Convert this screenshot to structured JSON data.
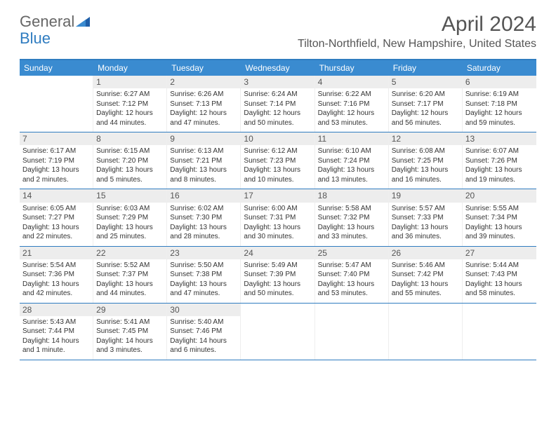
{
  "brand": {
    "part1": "General",
    "part2": "Blue"
  },
  "title": "April 2024",
  "location": "Tilton-Northfield, New Hampshire, United States",
  "colors": {
    "header_bar": "#3a8bd0",
    "border": "#2f7cc0",
    "daynum_bg": "#ededed",
    "text": "#333333",
    "title_text": "#555555"
  },
  "weekdays": [
    "Sunday",
    "Monday",
    "Tuesday",
    "Wednesday",
    "Thursday",
    "Friday",
    "Saturday"
  ],
  "weeks": [
    [
      null,
      {
        "n": "1",
        "sr": "6:27 AM",
        "ss": "7:12 PM",
        "dl": "12 hours and 44 minutes."
      },
      {
        "n": "2",
        "sr": "6:26 AM",
        "ss": "7:13 PM",
        "dl": "12 hours and 47 minutes."
      },
      {
        "n": "3",
        "sr": "6:24 AM",
        "ss": "7:14 PM",
        "dl": "12 hours and 50 minutes."
      },
      {
        "n": "4",
        "sr": "6:22 AM",
        "ss": "7:16 PM",
        "dl": "12 hours and 53 minutes."
      },
      {
        "n": "5",
        "sr": "6:20 AM",
        "ss": "7:17 PM",
        "dl": "12 hours and 56 minutes."
      },
      {
        "n": "6",
        "sr": "6:19 AM",
        "ss": "7:18 PM",
        "dl": "12 hours and 59 minutes."
      }
    ],
    [
      {
        "n": "7",
        "sr": "6:17 AM",
        "ss": "7:19 PM",
        "dl": "13 hours and 2 minutes."
      },
      {
        "n": "8",
        "sr": "6:15 AM",
        "ss": "7:20 PM",
        "dl": "13 hours and 5 minutes."
      },
      {
        "n": "9",
        "sr": "6:13 AM",
        "ss": "7:21 PM",
        "dl": "13 hours and 8 minutes."
      },
      {
        "n": "10",
        "sr": "6:12 AM",
        "ss": "7:23 PM",
        "dl": "13 hours and 10 minutes."
      },
      {
        "n": "11",
        "sr": "6:10 AM",
        "ss": "7:24 PM",
        "dl": "13 hours and 13 minutes."
      },
      {
        "n": "12",
        "sr": "6:08 AM",
        "ss": "7:25 PM",
        "dl": "13 hours and 16 minutes."
      },
      {
        "n": "13",
        "sr": "6:07 AM",
        "ss": "7:26 PM",
        "dl": "13 hours and 19 minutes."
      }
    ],
    [
      {
        "n": "14",
        "sr": "6:05 AM",
        "ss": "7:27 PM",
        "dl": "13 hours and 22 minutes."
      },
      {
        "n": "15",
        "sr": "6:03 AM",
        "ss": "7:29 PM",
        "dl": "13 hours and 25 minutes."
      },
      {
        "n": "16",
        "sr": "6:02 AM",
        "ss": "7:30 PM",
        "dl": "13 hours and 28 minutes."
      },
      {
        "n": "17",
        "sr": "6:00 AM",
        "ss": "7:31 PM",
        "dl": "13 hours and 30 minutes."
      },
      {
        "n": "18",
        "sr": "5:58 AM",
        "ss": "7:32 PM",
        "dl": "13 hours and 33 minutes."
      },
      {
        "n": "19",
        "sr": "5:57 AM",
        "ss": "7:33 PM",
        "dl": "13 hours and 36 minutes."
      },
      {
        "n": "20",
        "sr": "5:55 AM",
        "ss": "7:34 PM",
        "dl": "13 hours and 39 minutes."
      }
    ],
    [
      {
        "n": "21",
        "sr": "5:54 AM",
        "ss": "7:36 PM",
        "dl": "13 hours and 42 minutes."
      },
      {
        "n": "22",
        "sr": "5:52 AM",
        "ss": "7:37 PM",
        "dl": "13 hours and 44 minutes."
      },
      {
        "n": "23",
        "sr": "5:50 AM",
        "ss": "7:38 PM",
        "dl": "13 hours and 47 minutes."
      },
      {
        "n": "24",
        "sr": "5:49 AM",
        "ss": "7:39 PM",
        "dl": "13 hours and 50 minutes."
      },
      {
        "n": "25",
        "sr": "5:47 AM",
        "ss": "7:40 PM",
        "dl": "13 hours and 53 minutes."
      },
      {
        "n": "26",
        "sr": "5:46 AM",
        "ss": "7:42 PM",
        "dl": "13 hours and 55 minutes."
      },
      {
        "n": "27",
        "sr": "5:44 AM",
        "ss": "7:43 PM",
        "dl": "13 hours and 58 minutes."
      }
    ],
    [
      {
        "n": "28",
        "sr": "5:43 AM",
        "ss": "7:44 PM",
        "dl": "14 hours and 1 minute."
      },
      {
        "n": "29",
        "sr": "5:41 AM",
        "ss": "7:45 PM",
        "dl": "14 hours and 3 minutes."
      },
      {
        "n": "30",
        "sr": "5:40 AM",
        "ss": "7:46 PM",
        "dl": "14 hours and 6 minutes."
      },
      null,
      null,
      null,
      null
    ]
  ],
  "labels": {
    "sunrise": "Sunrise: ",
    "sunset": "Sunset: ",
    "daylight": "Daylight: "
  }
}
